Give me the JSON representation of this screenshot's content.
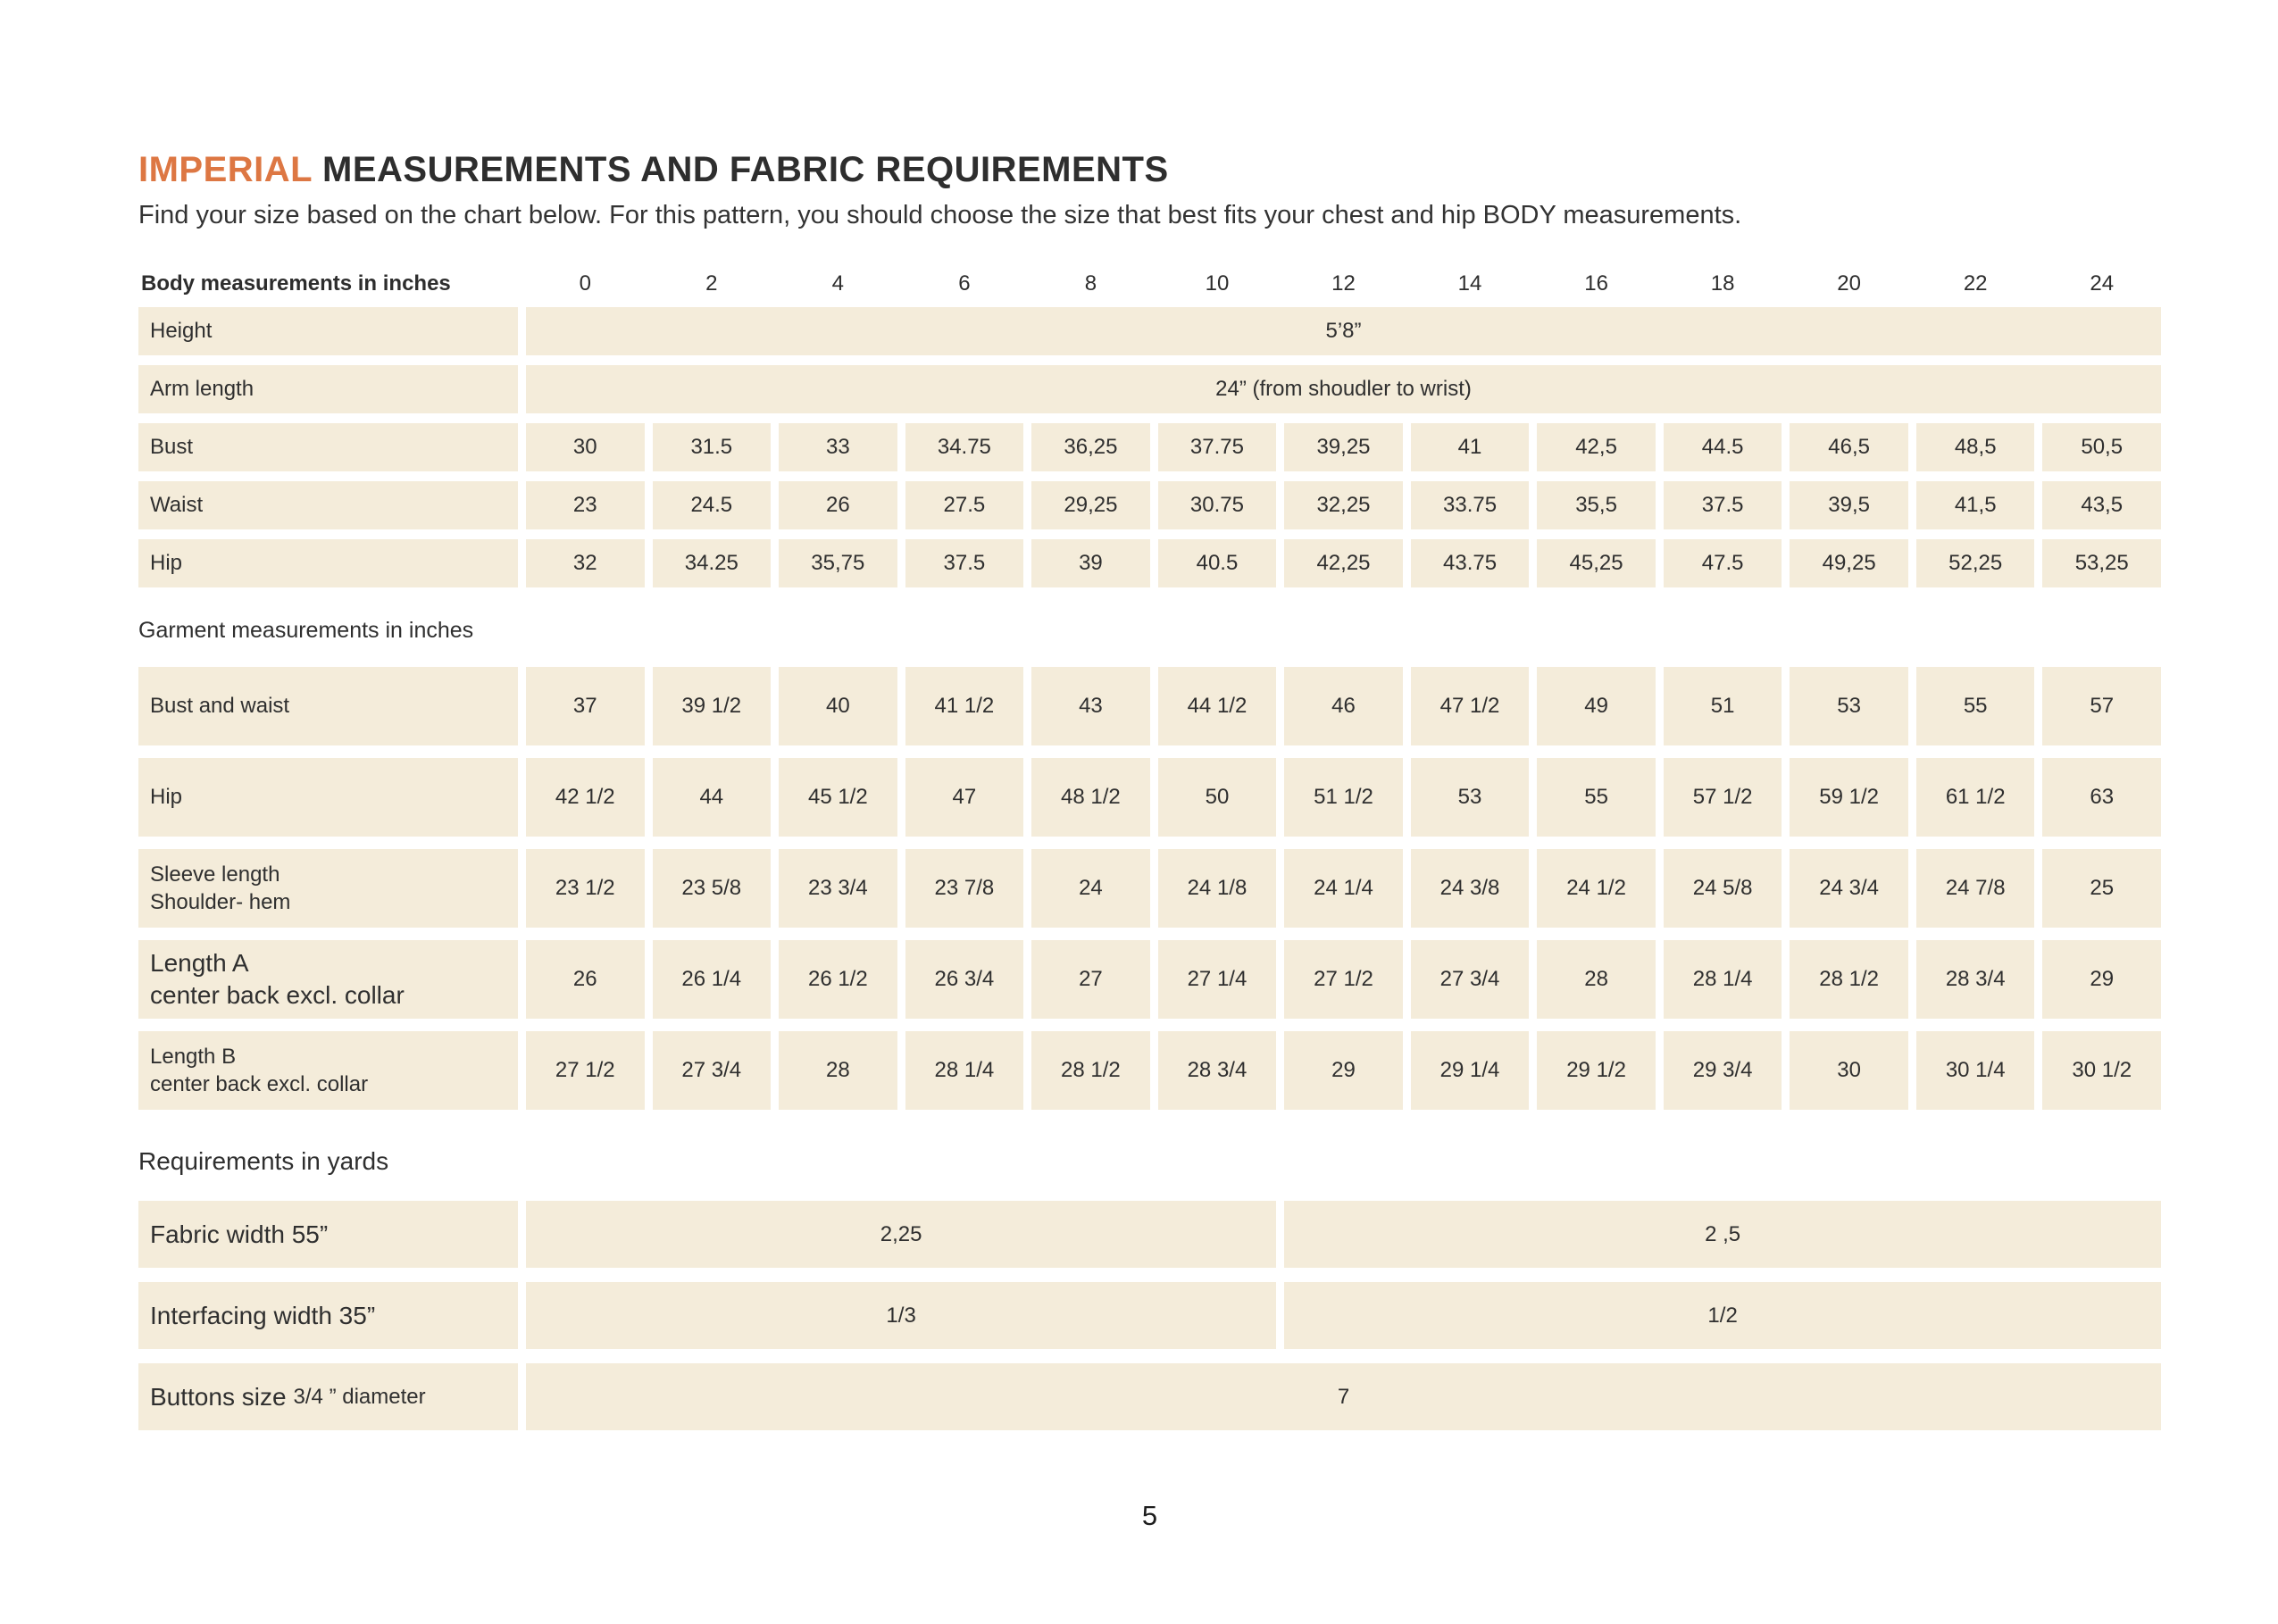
{
  "colors": {
    "accent_orange": "#dd7743",
    "cell_background": "#f4ecda",
    "text_dark": "#2d2d2d"
  },
  "header": {
    "title_accent": "IMPERIAL",
    "title_rest": " MEASUREMENTS AND FABRIC REQUIREMENTS",
    "subtitle": "Find your size based on the chart below. For this pattern, you should choose the size that best fits your chest and hip BODY measurements."
  },
  "size_header": {
    "label": "Body measurements in inches",
    "sizes": [
      "0",
      "2",
      "4",
      "6",
      "8",
      "10",
      "12",
      "14",
      "16",
      "18",
      "20",
      "22",
      "24"
    ]
  },
  "body_table": {
    "rows": [
      {
        "label": "Height",
        "span_value": "5’8”"
      },
      {
        "label": "Arm length",
        "span_value": "24” (from shoudler to wrist)"
      },
      {
        "label": "Bust",
        "values": [
          "30",
          "31.5",
          "33",
          "34.75",
          "36,25",
          "37.75",
          "39,25",
          "41",
          "42,5",
          "44.5",
          "46,5",
          "48,5",
          "50,5"
        ]
      },
      {
        "label": "Waist",
        "values": [
          "23",
          "24.5",
          "26",
          "27.5",
          "29,25",
          "30.75",
          "32,25",
          "33.75",
          "35,5",
          "37.5",
          "39,5",
          "41,5",
          "43,5"
        ]
      },
      {
        "label": "Hip",
        "values": [
          "32",
          "34.25",
          "35,75",
          "37.5",
          "39",
          "40.5",
          "42,25",
          "43.75",
          "45,25",
          "47.5",
          "49,25",
          "52,25",
          "53,25"
        ]
      }
    ]
  },
  "garment_table": {
    "section_label": "Garment measurements in inches",
    "rows": [
      {
        "label": "Bust and waist",
        "label2": "",
        "large": false,
        "values": [
          "37",
          "39 1/2",
          "40",
          "41 1/2",
          "43",
          "44 1/2",
          "46",
          "47 1/2",
          "49",
          "51",
          "53",
          "55",
          "57"
        ]
      },
      {
        "label": "Hip",
        "label2": "",
        "large": false,
        "values": [
          "42 1/2",
          "44",
          "45 1/2",
          "47",
          "48 1/2",
          "50",
          "51 1/2",
          "53",
          "55",
          "57 1/2",
          "59 1/2",
          "61 1/2",
          "63"
        ]
      },
      {
        "label": "Sleeve length",
        "label2": "Shoulder- hem",
        "large": false,
        "values": [
          "23 1/2",
          "23 5/8",
          "23 3/4",
          "23 7/8",
          "24",
          "24 1/8",
          "24 1/4",
          "24 3/8",
          "24 1/2",
          "24 5/8",
          "24 3/4",
          "24 7/8",
          "25"
        ]
      },
      {
        "label": "Length A",
        "label2": "center back excl. collar",
        "large": true,
        "values": [
          "26",
          "26 1/4",
          "26 1/2",
          "26 3/4",
          "27",
          "27 1/4",
          "27 1/2",
          "27 3/4",
          "28",
          "28 1/4",
          "28 1/2",
          "28 3/4",
          "29"
        ]
      },
      {
        "label": "Length B",
        "label2": "center back excl. collar",
        "large": false,
        "values": [
          "27 1/2",
          "27 3/4",
          "28",
          "28 1/4",
          "28 1/2",
          "28 3/4",
          "29",
          "29 1/4",
          "29 1/2",
          "29 3/4",
          "30",
          "30 1/4",
          "30 1/2"
        ]
      }
    ]
  },
  "requirements": {
    "section_label": "Requirements in yards",
    "rows": [
      {
        "label": "Fabric width 55”",
        "label_small": "",
        "left_value": "2,25",
        "right_value": "2 ,5",
        "full_value": ""
      },
      {
        "label": "Interfacing width 35”",
        "label_small": "",
        "left_value": "1/3",
        "right_value": "1/2",
        "full_value": ""
      },
      {
        "label": "Buttons size",
        "label_small": "3/4 ” diameter",
        "left_value": "",
        "right_value": "",
        "full_value": "7"
      }
    ]
  },
  "page_number": "5"
}
